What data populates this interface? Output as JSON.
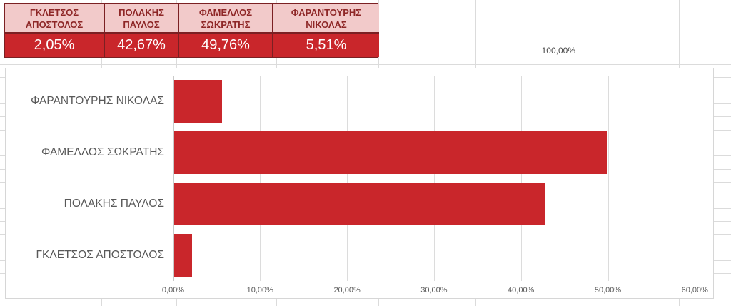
{
  "table": {
    "columns": [
      {
        "name": "ΓΚΛΕΤΣΟΣ ΑΠΟΣΤΟΛΟΣ",
        "value": "2,05%"
      },
      {
        "name": "ΠΟΛΑΚΗΣ ΠΑΥΛΟΣ",
        "value": "42,67%"
      },
      {
        "name": "ΦΑΜΕΛΛΟΣ ΣΩΚΡΑΤΗΣ",
        "value": "49,76%"
      },
      {
        "name": "ΦΑΡΑΝΤΟΥΡΗΣ ΝΙΚΟΛΑΣ",
        "value": "5,51%"
      }
    ],
    "total": "100,00%"
  },
  "chart_data": {
    "type": "bar",
    "orientation": "horizontal",
    "title": "",
    "xlabel": "",
    "ylabel": "",
    "categories": [
      "ΦΑΡΑΝΤΟΥΡΗΣ ΝΙΚΟΛΑΣ",
      "ΦΑΜΕΛΛΟΣ ΣΩΚΡΑΤΗΣ",
      "ΠΟΛΑΚΗΣ ΠΑΥΛΟΣ",
      "ΓΚΛΕΤΣΟΣ ΑΠΟΣΤΟΛΟΣ"
    ],
    "values": [
      5.51,
      49.76,
      42.67,
      2.05
    ],
    "value_labels": [
      "5,51%",
      "49,76%",
      "42,67%",
      "2,05%"
    ],
    "xlim": [
      0,
      60
    ],
    "x_tick_values": [
      0,
      10,
      20,
      30,
      40,
      50,
      60
    ],
    "x_tick_labels": [
      "0,00%",
      "10,00%",
      "20,00%",
      "30,00%",
      "40,00%",
      "50,00%",
      "60,00%"
    ],
    "grid": true,
    "legend": false,
    "bar_color": "#c9262b"
  },
  "colors": {
    "bar_red": "#c9262b",
    "table_value_bg": "#c9262b",
    "table_header_bg": "#f2caca",
    "table_header_text": "#8e2727",
    "table_border": "#7b2023",
    "sheet_gridline": "#dbdbdb",
    "axis_text": "#595959"
  }
}
